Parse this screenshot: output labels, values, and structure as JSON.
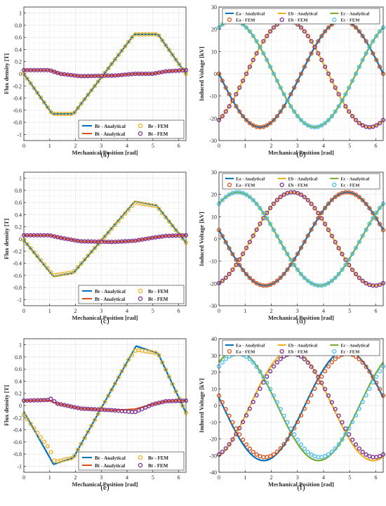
{
  "figure": {
    "colors": {
      "blue": "#0072BD",
      "orange": "#D95319",
      "yellow": "#EDB120",
      "purple": "#7E2F8E",
      "green": "#77AC30",
      "cyan": "#4DBEEE",
      "grid": "#e6e6e6"
    },
    "panels": [
      {
        "id": "a",
        "caption": "(a)",
        "xlabel": "Mechanical Position [rad]",
        "ylabel": "Flux density [T]"
      },
      {
        "id": "b",
        "caption": "(b)",
        "xlabel": "Mechanical Position [rad]",
        "ylabel": "Induced Voltage [kV]"
      },
      {
        "id": "c",
        "caption": "(c)",
        "xlabel": "Mechanical Position [rad]",
        "ylabel": "Flux density [T]"
      },
      {
        "id": "d",
        "caption": "(d)",
        "xlabel": "Mechanical Position [rad]",
        "ylabel": "Induced Voltage [kV]"
      },
      {
        "id": "e",
        "caption": "(e)",
        "xlabel": "Mechanical Position [rad]",
        "ylabel": "Flux density [T]"
      },
      {
        "id": "f",
        "caption": "(f)",
        "xlabel": "Mechanical Position [rad]",
        "ylabel": "Induced Voltage [kV]"
      }
    ]
  },
  "chart_data": [
    {
      "type": "line",
      "panel": "a",
      "xlabel": "Mechanical Position [rad]",
      "ylabel": "Flux density [T]",
      "xlim": [
        0,
        6.2832
      ],
      "ylim": [
        -1.1,
        1.1
      ],
      "xticks": [
        0,
        1,
        2,
        3,
        4,
        5,
        6
      ],
      "yticks": [
        -1,
        -0.8,
        -0.6,
        -0.4,
        -0.2,
        0,
        0.2,
        0.4,
        0.6,
        0.8,
        1
      ],
      "grid": true,
      "legend": {
        "position": "bottom-right",
        "entries": [
          "Br - Analytical",
          "Br - FEM",
          "Bt - Analytical",
          "Bt - FEM"
        ]
      },
      "series": [
        {
          "name": "Br - Analytical",
          "style": "line",
          "color": "#0072BD",
          "points": [
            [
              0,
              0.0
            ],
            [
              1.1,
              -0.66
            ],
            [
              1.92,
              -0.66
            ],
            [
              4.28,
              0.65
            ],
            [
              5.2,
              0.65
            ],
            [
              6.28,
              0.0
            ]
          ]
        },
        {
          "name": "Br - FEM",
          "style": "marker",
          "color": "#EDB120",
          "points": [
            [
              0,
              0.0
            ],
            [
              1.1,
              -0.66
            ],
            [
              1.92,
              -0.66
            ],
            [
              4.28,
              0.65
            ],
            [
              5.2,
              0.65
            ],
            [
              6.28,
              0.0
            ]
          ]
        },
        {
          "name": "Bt - Analytical",
          "style": "line",
          "color": "#D95319",
          "points": [
            [
              0,
              0.06
            ],
            [
              1.0,
              0.06
            ],
            [
              1.4,
              0.0
            ],
            [
              2.2,
              -0.04
            ],
            [
              3.5,
              -0.03
            ],
            [
              4.3,
              0.0
            ],
            [
              5.0,
              0.0
            ],
            [
              5.5,
              0.04
            ],
            [
              6.28,
              0.06
            ]
          ]
        },
        {
          "name": "Bt - FEM",
          "style": "marker",
          "color": "#7E2F8E",
          "points": [
            [
              0,
              0.06
            ],
            [
              1.0,
              0.06
            ],
            [
              1.4,
              0.0
            ],
            [
              2.2,
              -0.04
            ],
            [
              3.5,
              -0.03
            ],
            [
              4.3,
              0.0
            ],
            [
              5.0,
              0.0
            ],
            [
              5.5,
              0.04
            ],
            [
              6.28,
              0.06
            ]
          ]
        }
      ]
    },
    {
      "type": "line",
      "panel": "b",
      "xlabel": "Mechanical Position [rad]",
      "ylabel": "Induced Voltage [kV]",
      "xlim": [
        0,
        6.2832
      ],
      "ylim": [
        -30,
        30
      ],
      "xticks": [
        0,
        1,
        2,
        3,
        4,
        5,
        6
      ],
      "yticks": [
        -30,
        -20,
        -10,
        0,
        10,
        20,
        30
      ],
      "grid": true,
      "legend": {
        "position": "top",
        "entries": [
          "Ea - Analytical",
          "Eb - Analytical",
          "Ec - Analytical",
          "Ea - FEM",
          "Eb - FEM",
          "Ec - FEM"
        ]
      },
      "series": [
        {
          "name": "Ea - Analytical",
          "style": "line",
          "color": "#0072BD",
          "amplitude": 24,
          "phase_rad": 3.1416
        },
        {
          "name": "Eb - Analytical",
          "style": "line",
          "color": "#EDB120",
          "amplitude": 24,
          "phase_rad": -1.0472
        },
        {
          "name": "Ec - Analytical",
          "style": "line",
          "color": "#77AC30",
          "amplitude": 24,
          "phase_rad": 1.0472
        },
        {
          "name": "Ea - FEM",
          "style": "marker",
          "color": "#D95319",
          "amplitude": 24,
          "phase_rad": 3.1416
        },
        {
          "name": "Eb - FEM",
          "style": "marker",
          "color": "#7E2F8E",
          "amplitude": 24,
          "phase_rad": -1.0472
        },
        {
          "name": "Ec - FEM",
          "style": "marker",
          "color": "#4DBEEE",
          "amplitude": 24,
          "phase_rad": 1.0472
        }
      ]
    },
    {
      "type": "line",
      "panel": "c",
      "xlabel": "Mechanical Position [rad]",
      "ylabel": "Flux density [T]",
      "xlim": [
        0,
        6.2832
      ],
      "ylim": [
        -1.1,
        1.1
      ],
      "xticks": [
        0,
        1,
        2,
        3,
        4,
        5,
        6
      ],
      "yticks": [
        -1,
        -0.8,
        -0.6,
        -0.4,
        -0.2,
        0,
        0.2,
        0.4,
        0.6,
        0.8,
        1
      ],
      "grid": true,
      "legend": {
        "position": "bottom-right",
        "entries": [
          "Br - Analytical",
          "Br - FEM",
          "Bt - Analytical",
          "Bt - FEM"
        ]
      },
      "series": [
        {
          "name": "Br - Analytical",
          "style": "line",
          "color": "#0072BD",
          "points": [
            [
              0,
              -0.02
            ],
            [
              1.15,
              -0.62
            ],
            [
              1.92,
              -0.56
            ],
            [
              4.3,
              0.62
            ],
            [
              5.15,
              0.55
            ],
            [
              6.28,
              -0.06
            ]
          ]
        },
        {
          "name": "Br - FEM",
          "style": "marker",
          "color": "#EDB120",
          "points": [
            [
              0,
              -0.02
            ],
            [
              1.15,
              -0.6
            ],
            [
              1.92,
              -0.55
            ],
            [
              4.3,
              0.6
            ],
            [
              5.15,
              0.54
            ],
            [
              6.28,
              -0.06
            ]
          ]
        },
        {
          "name": "Bt - Analytical",
          "style": "line",
          "color": "#D95319",
          "points": [
            [
              0,
              0.06
            ],
            [
              1.0,
              0.06
            ],
            [
              1.4,
              0.02
            ],
            [
              2.2,
              -0.04
            ],
            [
              3.5,
              -0.05
            ],
            [
              4.3,
              -0.03
            ],
            [
              5.0,
              0.02
            ],
            [
              5.5,
              0.05
            ],
            [
              6.28,
              0.06
            ]
          ]
        },
        {
          "name": "Bt - FEM",
          "style": "marker",
          "color": "#7E2F8E",
          "points": [
            [
              0,
              0.06
            ],
            [
              1.0,
              0.06
            ],
            [
              1.4,
              0.02
            ],
            [
              2.2,
              -0.04
            ],
            [
              3.5,
              -0.05
            ],
            [
              4.3,
              -0.03
            ],
            [
              5.0,
              0.02
            ],
            [
              5.5,
              0.05
            ],
            [
              6.28,
              0.06
            ]
          ]
        }
      ]
    },
    {
      "type": "line",
      "panel": "d",
      "xlabel": "Mechanical Position [rad]",
      "ylabel": "Induced Voltage [kV]",
      "xlim": [
        0,
        6.2832
      ],
      "ylim": [
        -30,
        30
      ],
      "xticks": [
        0,
        1,
        2,
        3,
        4,
        5,
        6
      ],
      "yticks": [
        -30,
        -20,
        -10,
        0,
        10,
        20,
        30
      ],
      "grid": true,
      "legend": {
        "position": "top",
        "entries": [
          "Ea - Analytical",
          "Eb - Analytical",
          "Ec - Analytical",
          "Ea - FEM",
          "Eb - FEM",
          "Ec - FEM"
        ]
      },
      "series": [
        {
          "name": "Ea - Analytical",
          "style": "line",
          "color": "#0072BD",
          "amplitude": 21,
          "phase_rad": 2.95
        },
        {
          "name": "Eb - Analytical",
          "style": "line",
          "color": "#EDB120",
          "amplitude": 21,
          "phase_rad": -1.2412
        },
        {
          "name": "Ec - Analytical",
          "style": "line",
          "color": "#77AC30",
          "amplitude": 21,
          "phase_rad": 0.8532
        },
        {
          "name": "Ea - FEM",
          "style": "marker",
          "color": "#D95319",
          "amplitude": 21,
          "phase_rad": 2.95
        },
        {
          "name": "Eb - FEM",
          "style": "marker",
          "color": "#7E2F8E",
          "amplitude": 21,
          "phase_rad": -1.2412
        },
        {
          "name": "Ec - FEM",
          "style": "marker",
          "color": "#4DBEEE",
          "amplitude": 21,
          "phase_rad": 0.8532
        }
      ]
    },
    {
      "type": "line",
      "panel": "e",
      "xlabel": "Mechanical Position [rad]",
      "ylabel": "Flux density [T]",
      "xlim": [
        0,
        6.2832
      ],
      "ylim": [
        -1.1,
        1.1
      ],
      "xticks": [
        0,
        1,
        2,
        3,
        4,
        5,
        6
      ],
      "yticks": [
        -1,
        -0.8,
        -0.6,
        -0.4,
        -0.2,
        0,
        0.2,
        0.4,
        0.6,
        0.8,
        1
      ],
      "grid": true,
      "legend": {
        "position": "bottom-right",
        "entries": [
          "Br - Analytical",
          "Br - FEM",
          "Bt - Analytical",
          "Bt - FEM"
        ]
      },
      "series": [
        {
          "name": "Br - Analytical",
          "style": "line",
          "color": "#0072BD",
          "points": [
            [
              0,
              -0.1
            ],
            [
              1.15,
              -0.97
            ],
            [
              1.92,
              -0.86
            ],
            [
              4.35,
              0.98
            ],
            [
              5.2,
              0.86
            ],
            [
              6.28,
              -0.12
            ]
          ]
        },
        {
          "name": "Br - FEM",
          "style": "marker",
          "color": "#EDB120",
          "points": [
            [
              0,
              -0.15
            ],
            [
              1.0,
              -0.72
            ],
            [
              1.2,
              -0.93
            ],
            [
              1.92,
              -0.86
            ],
            [
              3.0,
              -0.05
            ],
            [
              4.0,
              0.72
            ],
            [
              4.35,
              0.92
            ],
            [
              5.2,
              0.86
            ],
            [
              6.28,
              -0.12
            ]
          ]
        },
        {
          "name": "Bt - Analytical",
          "style": "line",
          "color": "#D95319",
          "points": [
            [
              0,
              0.08
            ],
            [
              0.9,
              0.09
            ],
            [
              1.3,
              0.03
            ],
            [
              2.2,
              -0.05
            ],
            [
              3.5,
              -0.08
            ],
            [
              4.3,
              -0.06
            ],
            [
              5.0,
              0.02
            ],
            [
              5.5,
              0.07
            ],
            [
              6.28,
              0.08
            ]
          ]
        },
        {
          "name": "Bt - FEM",
          "style": "marker",
          "color": "#7E2F8E",
          "points": [
            [
              0,
              0.08
            ],
            [
              0.9,
              0.09
            ],
            [
              1.05,
              0.11
            ],
            [
              1.3,
              0.03
            ],
            [
              2.2,
              -0.05
            ],
            [
              3.5,
              -0.08
            ],
            [
              4.3,
              -0.11
            ],
            [
              5.0,
              0.02
            ],
            [
              5.5,
              0.07
            ],
            [
              6.28,
              0.08
            ]
          ]
        }
      ]
    },
    {
      "type": "line",
      "panel": "f",
      "xlabel": "Mechanical Position [rad]",
      "ylabel": "Induced Voltage [kV]",
      "xlim": [
        0,
        6.2832
      ],
      "ylim": [
        -40,
        40
      ],
      "xticks": [
        0,
        1,
        2,
        3,
        4,
        5,
        6
      ],
      "yticks": [
        -40,
        -30,
        -20,
        -10,
        0,
        10,
        20,
        30,
        40
      ],
      "grid": true,
      "legend": {
        "position": "top",
        "entries": [
          "Ea - Analytical",
          "Eb - Analytical",
          "Ec - Analytical",
          "Ea - FEM",
          "Eb - FEM",
          "Ec - FEM"
        ]
      },
      "series": [
        {
          "name": "Ea - Analytical",
          "style": "line",
          "color": "#0072BD",
          "amplitude": 33,
          "phase_rad": 3.0
        },
        {
          "name": "Eb - Analytical",
          "style": "line",
          "color": "#EDB120",
          "amplitude": 33,
          "phase_rad": -1.19
        },
        {
          "name": "Ec - Analytical",
          "style": "line",
          "color": "#77AC30",
          "amplitude": 33,
          "phase_rad": 0.905
        },
        {
          "name": "Ea - FEM",
          "style": "marker",
          "color": "#D95319",
          "amplitude": 31,
          "phase_rad": 2.95
        },
        {
          "name": "Eb - FEM",
          "style": "marker",
          "color": "#7E2F8E",
          "amplitude": 31,
          "phase_rad": -1.24
        },
        {
          "name": "Ec - FEM",
          "style": "marker",
          "color": "#4DBEEE",
          "amplitude": 31,
          "phase_rad": 0.855
        }
      ]
    }
  ]
}
